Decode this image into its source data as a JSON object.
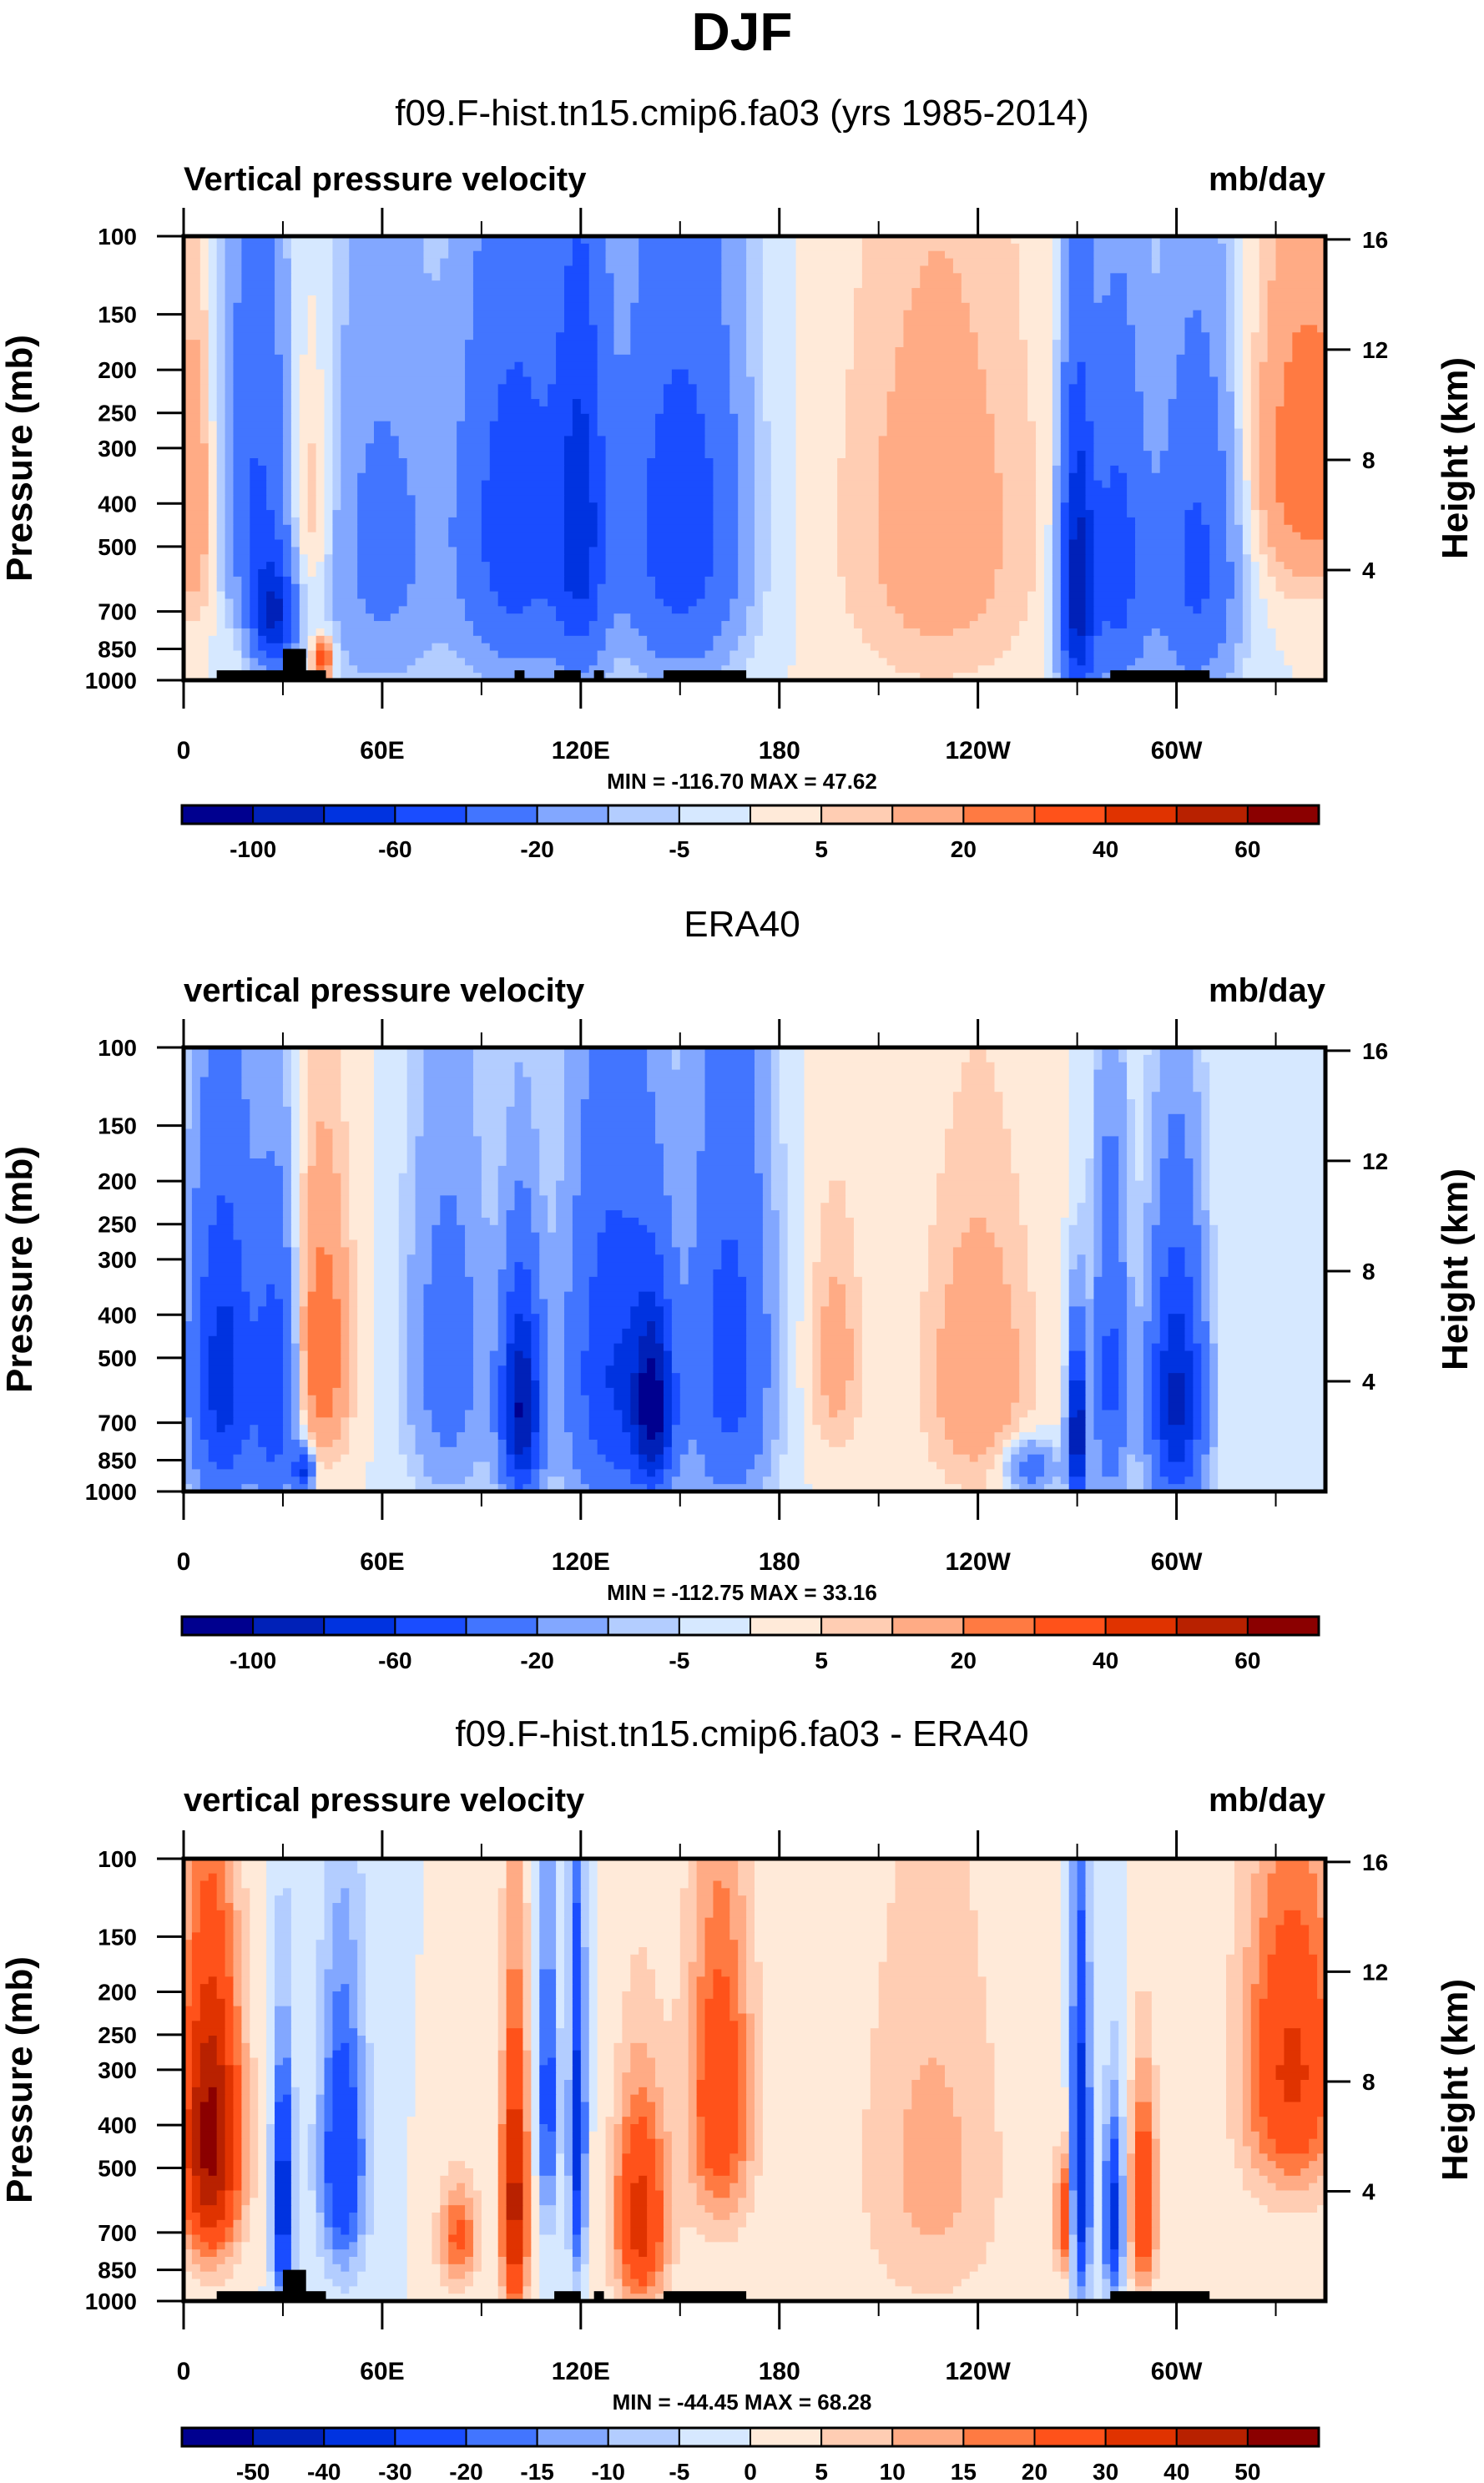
{
  "figure_title": "DJF",
  "colormap": {
    "blues_to_reds": [
      "#00008f",
      "#0021b8",
      "#0033e0",
      "#1a4dff",
      "#4275ff",
      "#82a7ff",
      "#b3cdff",
      "#d6e8ff",
      "#ffead9",
      "#ffcdb3",
      "#ffab85",
      "#ff7a42",
      "#ff521a",
      "#e03300",
      "#b82100",
      "#8b0000"
    ]
  },
  "chart_data": [
    {
      "type": "heatmap",
      "panel_title": "f09.F-hist.tn15.cmip6.fa03 (yrs 1985-2014)",
      "left_label": "Vertical pressure velocity",
      "right_label": "mb/day",
      "ylabel": "Pressure (mb)",
      "ylabel_right": "Height (km)",
      "x_ticks": [
        "0",
        "60E",
        "120E",
        "180",
        "120W",
        "60W"
      ],
      "x_tick_lon": [
        0,
        60,
        120,
        180,
        240,
        300
      ],
      "x_range": [
        0,
        345
      ],
      "y_ticks": [
        100,
        150,
        200,
        250,
        300,
        400,
        500,
        700,
        850,
        1000
      ],
      "y_range": [
        100,
        1000
      ],
      "y_right_ticks": [
        4,
        8,
        12,
        16
      ],
      "stats": "MIN = -116.70  MAX =  47.62",
      "min": -116.7,
      "max": 47.62,
      "levels": [
        -120,
        -100,
        -80,
        -60,
        -40,
        -20,
        -10,
        -5,
        0,
        5,
        10,
        20,
        30,
        40,
        50,
        60
      ],
      "colorbar_labels": [
        "-100",
        "-60",
        "-20",
        "-5",
        "5",
        "20",
        "40",
        "60"
      ],
      "features": [
        {
          "lon": 3,
          "p": 400,
          "v": 20,
          "wl": 6,
          "wp": 300
        },
        {
          "lon": 22,
          "p": 350,
          "v": -40,
          "wl": 10,
          "wp": 350
        },
        {
          "lon": 27,
          "p": 720,
          "v": -80,
          "wl": 6,
          "wp": 200
        },
        {
          "lon": 38,
          "p": 400,
          "v": 15,
          "wl": 7,
          "wp": 260
        },
        {
          "lon": 42,
          "p": 900,
          "v": 40,
          "wl": 3,
          "wp": 100
        },
        {
          "lon": 60,
          "p": 500,
          "v": -25,
          "wl": 18,
          "wp": 500
        },
        {
          "lon": 100,
          "p": 450,
          "v": -55,
          "wl": 16,
          "wp": 450
        },
        {
          "lon": 120,
          "p": 450,
          "v": -60,
          "wl": 8,
          "wp": 450
        },
        {
          "lon": 150,
          "p": 450,
          "v": -55,
          "wl": 18,
          "wp": 450
        },
        {
          "lon": 228,
          "p": 450,
          "v": 16,
          "wl": 28,
          "wp": 500
        },
        {
          "lon": 270,
          "p": 620,
          "v": -90,
          "wl": 5,
          "wp": 450
        },
        {
          "lon": 282,
          "p": 550,
          "v": -50,
          "wl": 9,
          "wp": 450
        },
        {
          "lon": 306,
          "p": 550,
          "v": -45,
          "wl": 12,
          "wp": 450
        },
        {
          "lon": 340,
          "p": 320,
          "v": 30,
          "wl": 16,
          "wp": 260
        }
      ],
      "land_mask": [
        [
          10,
          43,
          950
        ],
        [
          30,
          37,
          850
        ],
        [
          100,
          103,
          950
        ],
        [
          112,
          120,
          950
        ],
        [
          124,
          127,
          950
        ],
        [
          145,
          170,
          950
        ],
        [
          280,
          310,
          950
        ]
      ]
    },
    {
      "type": "heatmap",
      "panel_title": "ERA40",
      "left_label": "vertical pressure velocity",
      "right_label": "mb/day",
      "ylabel": "Pressure (mb)",
      "ylabel_right": "Height (km)",
      "x_ticks": [
        "0",
        "60E",
        "120E",
        "180",
        "120W",
        "60W"
      ],
      "x_tick_lon": [
        0,
        60,
        120,
        180,
        240,
        300
      ],
      "x_range": [
        0,
        345
      ],
      "y_ticks": [
        100,
        150,
        200,
        250,
        300,
        400,
        500,
        700,
        850,
        1000
      ],
      "y_range": [
        100,
        1000
      ],
      "y_right_ticks": [
        4,
        8,
        12,
        16
      ],
      "stats": "MIN = -112.75  MAX =  33.16",
      "min": -112.75,
      "max": 33.16,
      "levels": [
        -120,
        -100,
        -80,
        -60,
        -40,
        -20,
        -10,
        -5,
        0,
        5,
        10,
        20,
        30,
        40,
        50,
        60
      ],
      "colorbar_labels": [
        "-100",
        "-60",
        "-20",
        "-5",
        "5",
        "20",
        "40",
        "60"
      ],
      "features": [
        {
          "lon": 12,
          "p": 550,
          "v": -70,
          "wl": 10,
          "wp": 450
        },
        {
          "lon": 28,
          "p": 600,
          "v": -55,
          "wl": 6,
          "wp": 400
        },
        {
          "lon": 42,
          "p": 480,
          "v": 30,
          "wl": 8,
          "wp": 320
        },
        {
          "lon": 36,
          "p": 900,
          "v": -60,
          "wl": 3,
          "wp": 100
        },
        {
          "lon": 80,
          "p": 500,
          "v": -30,
          "wl": 12,
          "wp": 450
        },
        {
          "lon": 102,
          "p": 650,
          "v": -100,
          "wl": 6,
          "wp": 350
        },
        {
          "lon": 130,
          "p": 550,
          "v": -60,
          "wl": 14,
          "wp": 500
        },
        {
          "lon": 142,
          "p": 650,
          "v": -90,
          "wl": 6,
          "wp": 300
        },
        {
          "lon": 165,
          "p": 500,
          "v": -50,
          "wl": 12,
          "wp": 500
        },
        {
          "lon": 197,
          "p": 500,
          "v": 14,
          "wl": 8,
          "wp": 300
        },
        {
          "lon": 240,
          "p": 550,
          "v": 18,
          "wl": 16,
          "wp": 400
        },
        {
          "lon": 256,
          "p": 880,
          "v": -30,
          "wl": 8,
          "wp": 120
        },
        {
          "lon": 270,
          "p": 750,
          "v": -110,
          "wl": 2.5,
          "wp": 300
        },
        {
          "lon": 280,
          "p": 550,
          "v": -45,
          "wl": 5,
          "wp": 450
        },
        {
          "lon": 300,
          "p": 620,
          "v": -85,
          "wl": 8,
          "wp": 400
        }
      ],
      "land_mask": []
    },
    {
      "type": "heatmap",
      "panel_title": "f09.F-hist.tn15.cmip6.fa03 - ERA40",
      "left_label": "vertical pressure velocity",
      "right_label": "mb/day",
      "ylabel": "Pressure (mb)",
      "ylabel_right": "Height (km)",
      "x_ticks": [
        "0",
        "60E",
        "120E",
        "180",
        "120W",
        "60W"
      ],
      "x_tick_lon": [
        0,
        60,
        120,
        180,
        240,
        300
      ],
      "x_range": [
        0,
        345
      ],
      "y_ticks": [
        100,
        150,
        200,
        250,
        300,
        400,
        500,
        700,
        850,
        1000
      ],
      "y_range": [
        100,
        1000
      ],
      "y_right_ticks": [
        4,
        8,
        12,
        16
      ],
      "stats": "MIN = -44.45  MAX =  68.28",
      "min": -44.45,
      "max": 68.28,
      "levels": [
        -60,
        -50,
        -40,
        -30,
        -20,
        -15,
        -10,
        -5,
        0,
        5,
        10,
        15,
        20,
        30,
        40,
        50
      ],
      "colorbar_labels": [
        "-50",
        "-40",
        "-30",
        "-20",
        "-15",
        "-10",
        "-5",
        "0",
        "5",
        "10",
        "15",
        "20",
        "30",
        "40",
        "50"
      ],
      "features": [
        {
          "lon": 8,
          "p": 430,
          "v": 55,
          "wl": 9,
          "wp": 320
        },
        {
          "lon": 30,
          "p": 600,
          "v": -40,
          "wl": 3,
          "wp": 350
        },
        {
          "lon": 48,
          "p": 480,
          "v": -30,
          "wl": 7,
          "wp": 350
        },
        {
          "lon": 83,
          "p": 720,
          "v": 22,
          "wl": 6,
          "wp": 200
        },
        {
          "lon": 100,
          "p": 600,
          "v": 45,
          "wl": 4,
          "wp": 420
        },
        {
          "lon": 110,
          "p": 350,
          "v": -25,
          "wl": 3,
          "wp": 300
        },
        {
          "lon": 119,
          "p": 420,
          "v": -35,
          "wl": 2.5,
          "wp": 400
        },
        {
          "lon": 138,
          "p": 650,
          "v": 35,
          "wl": 8,
          "wp": 350
        },
        {
          "lon": 162,
          "p": 350,
          "v": 28,
          "wl": 10,
          "wp": 300
        },
        {
          "lon": 226,
          "p": 500,
          "v": 12,
          "wl": 22,
          "wp": 500
        },
        {
          "lon": 266,
          "p": 650,
          "v": 30,
          "wl": 2.5,
          "wp": 200
        },
        {
          "lon": 271,
          "p": 500,
          "v": -40,
          "wl": 3,
          "wp": 450
        },
        {
          "lon": 281,
          "p": 650,
          "v": -35,
          "wl": 3,
          "wp": 300
        },
        {
          "lon": 290,
          "p": 600,
          "v": 33,
          "wl": 4,
          "wp": 300
        },
        {
          "lon": 335,
          "p": 300,
          "v": 32,
          "wl": 15,
          "wp": 250
        }
      ],
      "land_mask": [
        [
          10,
          43,
          950
        ],
        [
          30,
          37,
          850
        ],
        [
          112,
          120,
          950
        ],
        [
          124,
          127,
          950
        ],
        [
          145,
          170,
          950
        ],
        [
          280,
          310,
          950
        ]
      ]
    }
  ]
}
